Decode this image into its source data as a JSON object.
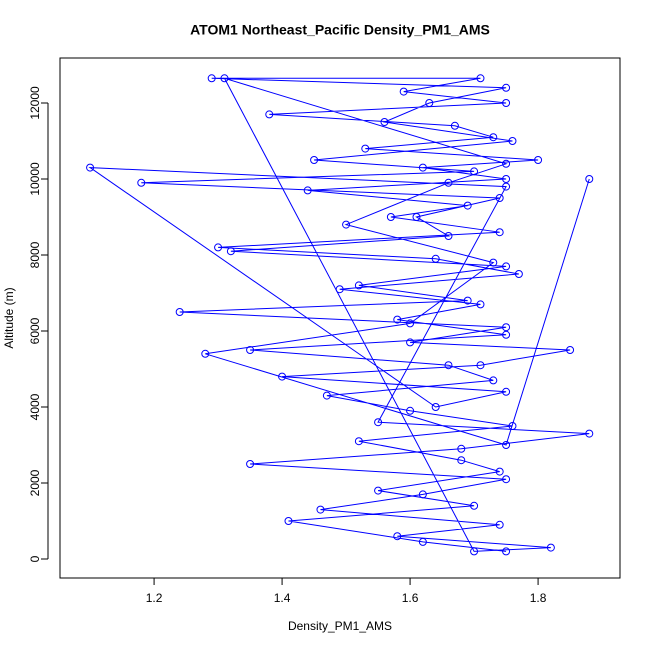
{
  "chart_data": {
    "type": "line",
    "title": "ATOM1 Northeast_Pacific Density_PM1_AMS",
    "x_label": "Density_PM1_AMS",
    "y_label": "Altitude (m)",
    "color": "#0000ff",
    "markers": true,
    "x": [
      1.75,
      1.62,
      1.41,
      1.7,
      1.55,
      1.74,
      1.68,
      1.52,
      1.76,
      1.6,
      1.47,
      1.73,
      1.66,
      1.35,
      1.75,
      1.58,
      1.71,
      1.49,
      1.77,
      1.64,
      1.3,
      1.74,
      1.57,
      1.69,
      1.44,
      1.75,
      1.62,
      1.8,
      1.53,
      1.73,
      1.67,
      1.38,
      1.75,
      1.59,
      1.71,
      1.29,
      1.75,
      1.63,
      1.56,
      1.76,
      1.45,
      1.7,
      1.18,
      1.74,
      1.61,
      1.66,
      1.32,
      1.75,
      1.52,
      1.69,
      1.24,
      1.75,
      1.6,
      1.85,
      1.71,
      1.4,
      1.75,
      1.64,
      1.1,
      1.75,
      1.55,
      1.88,
      1.68,
      1.35,
      1.75,
      1.62,
      1.46,
      1.74,
      1.58,
      1.82,
      1.7,
      1.31,
      1.75,
      1.66,
      1.5,
      1.73,
      1.6,
      1.28,
      1.75,
      1.88
    ],
    "values": [
      200,
      450,
      1000,
      1400,
      1800,
      2300,
      2600,
      3100,
      3500,
      3900,
      4300,
      4700,
      5100,
      5500,
      5900,
      6300,
      6700,
      7100,
      7500,
      7900,
      8200,
      8600,
      9000,
      9300,
      9700,
      10000,
      10300,
      10500,
      10800,
      11100,
      11400,
      11700,
      12000,
      12300,
      12650,
      12650,
      12400,
      12000,
      11500,
      11000,
      10500,
      10200,
      9900,
      9500,
      9000,
      8500,
      8100,
      7700,
      7200,
      6800,
      6500,
      6100,
      5700,
      5500,
      5100,
      4800,
      4400,
      4000,
      10300,
      9800,
      3600,
      3300,
      2900,
      2500,
      2100,
      1700,
      1300,
      900,
      600,
      300,
      200,
      12650,
      10400,
      9900,
      8800,
      7800,
      6200,
      5400,
      3000,
      10000
    ],
    "xlim": [
      1.053,
      1.928
    ],
    "ylim": [
      -500,
      13184
    ],
    "xticks": [
      1.2,
      1.4,
      1.6,
      1.8
    ],
    "yticks": [
      0,
      2000,
      4000,
      6000,
      8000,
      10000,
      12000
    ]
  }
}
